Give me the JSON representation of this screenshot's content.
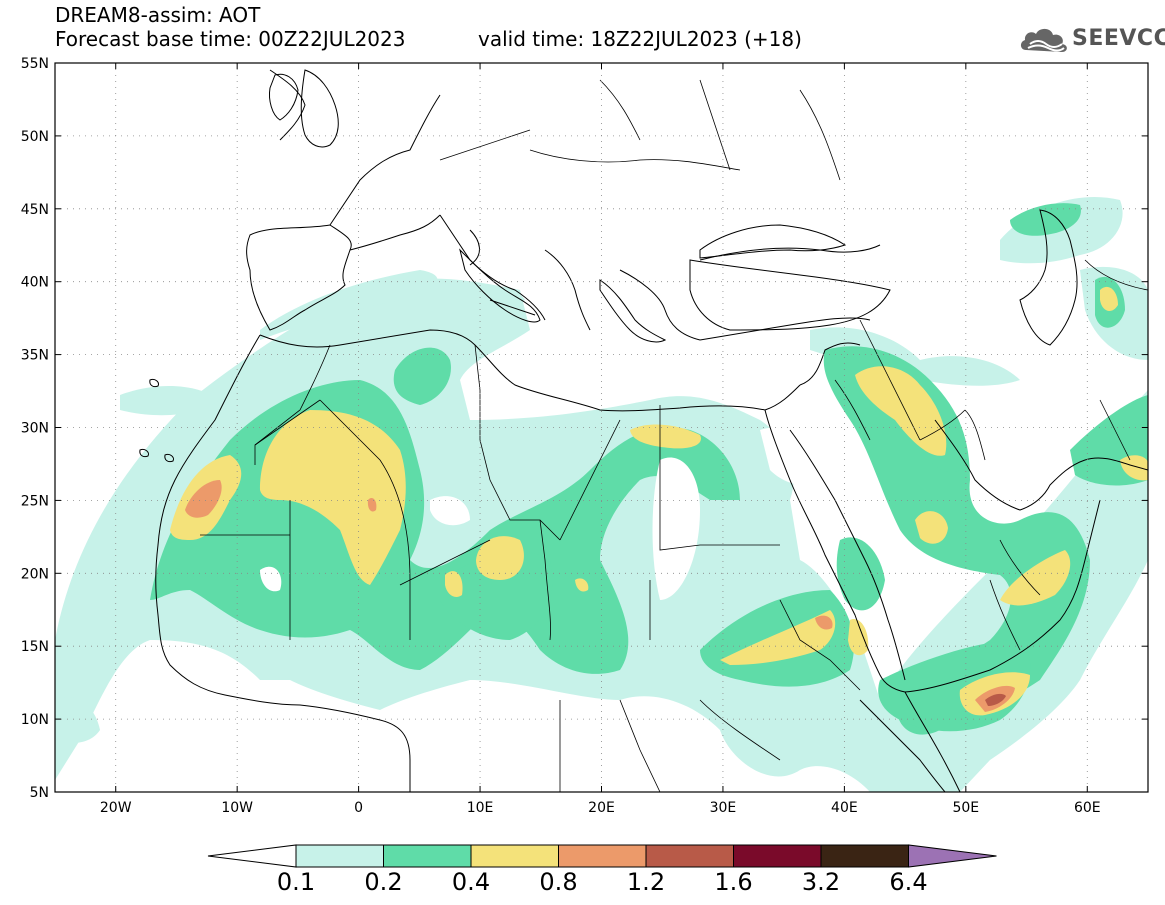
{
  "header": {
    "title": "DREAM8-assim: AOT",
    "base_time": "Forecast base time: 00Z22JUL2023",
    "valid_time": "valid time: 18Z22JUL2023 (+18)",
    "logo_text": "SEEVCCC"
  },
  "map": {
    "lon_range": [
      -25,
      65
    ],
    "lat_range": [
      5,
      55
    ],
    "lat_labels": [
      "5N",
      "10N",
      "15N",
      "20N",
      "25N",
      "30N",
      "35N",
      "40N",
      "45N",
      "50N",
      "55N"
    ],
    "lon_labels": [
      "20W",
      "10W",
      "0",
      "10E",
      "20E",
      "30E",
      "40E",
      "50E",
      "60E"
    ],
    "lat_values": [
      5,
      10,
      15,
      20,
      25,
      30,
      35,
      40,
      45,
      50,
      55
    ],
    "lon_values": [
      -20,
      -10,
      0,
      10,
      20,
      30,
      40,
      50,
      60
    ]
  },
  "colorbar": {
    "levels": [
      "0.1",
      "0.2",
      "0.4",
      "0.8",
      "1.2",
      "1.6",
      "3.2",
      "6.4"
    ],
    "colors": [
      "#c7f2e9",
      "#5fdca8",
      "#f4e27a",
      "#ec9a6a",
      "#b85a48",
      "#7a0a2a",
      "#3a2414",
      "#9c72b4"
    ]
  },
  "colors": {
    "c1": "#c7f2e9",
    "c2": "#5fdca8",
    "c3": "#f4e27a",
    "c4": "#ec9a6a",
    "c5": "#b85a48"
  }
}
